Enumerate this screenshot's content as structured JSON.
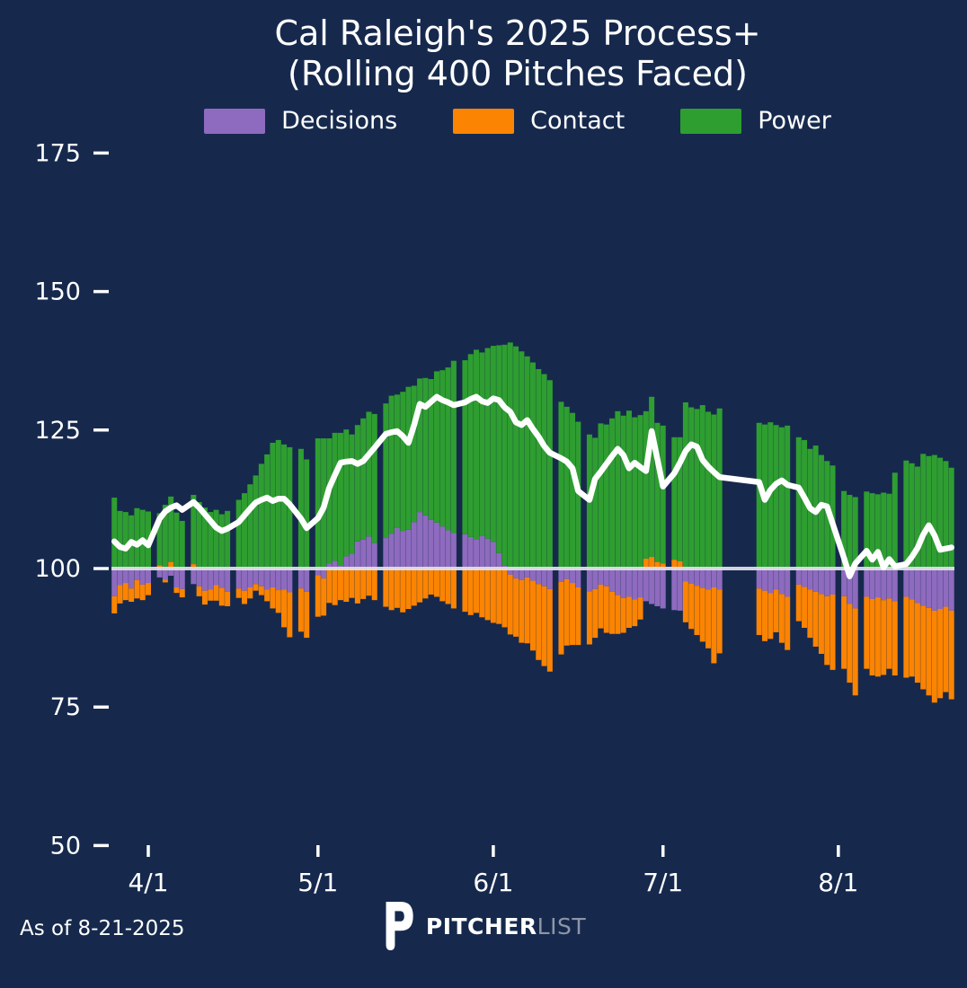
{
  "title": {
    "line1": "Cal Raleigh's 2025 Process+",
    "line2": "(Rolling 400 Pitches Faced)"
  },
  "legend": [
    {
      "label": "Decisions",
      "color": "#8e6bbf"
    },
    {
      "label": "Contact",
      "color": "#fb8402"
    },
    {
      "label": "Power",
      "color": "#2e9e30"
    }
  ],
  "footer": {
    "as_of": "As of 8-21-2025",
    "brand_bold": "PITCHER",
    "brand_light": "LIST"
  },
  "colors": {
    "background": "#16294d",
    "decisions": "#8e6bbf",
    "contact": "#fb8402",
    "power": "#2e9e30",
    "rolling_line": "#ffffff",
    "baseline": "#e2e2ec",
    "axis_text": "#ffffff",
    "brand_light_text": "#8e96a6"
  },
  "chart_data": {
    "type": "bar+line",
    "title": "Cal Raleigh's 2025 Process+ (Rolling 400 Pitches Faced)",
    "baseline": 100,
    "ylim": [
      45,
      182
    ],
    "yticks": [
      50,
      75,
      100,
      125,
      150,
      175
    ],
    "xticks": [
      "4/1",
      "5/1",
      "6/1",
      "7/1",
      "8/1"
    ],
    "grid": false,
    "legend_position": "top",
    "note": "Stacked deviation bars around baseline 100; white line = overall rolling Process+ (values estimated from pixels)",
    "x": [
      "3/26",
      "3/27",
      "3/28",
      "3/29",
      "3/30",
      "3/31",
      "4/1",
      "4/3",
      "4/4",
      "4/5",
      "4/6",
      "4/7",
      "4/9",
      "4/10",
      "4/11",
      "4/12",
      "4/13",
      "4/14",
      "4/15",
      "4/17",
      "4/18",
      "4/19",
      "4/20",
      "4/21",
      "4/22",
      "4/23",
      "4/24",
      "4/25",
      "4/26",
      "4/28",
      "4/29",
      "5/1",
      "5/2",
      "5/3",
      "5/4",
      "5/5",
      "5/6",
      "5/7",
      "5/8",
      "5/9",
      "5/10",
      "5/11",
      "5/13",
      "5/14",
      "5/15",
      "5/16",
      "5/17",
      "5/18",
      "5/19",
      "5/20",
      "5/21",
      "5/22",
      "5/23",
      "5/24",
      "5/25",
      "5/27",
      "5/28",
      "5/29",
      "5/30",
      "5/31",
      "6/1",
      "6/2",
      "6/3",
      "6/4",
      "6/5",
      "6/6",
      "6/7",
      "6/8",
      "6/9",
      "6/10",
      "6/11",
      "6/13",
      "6/14",
      "6/15",
      "6/16",
      "6/18",
      "6/19",
      "6/20",
      "6/21",
      "6/22",
      "6/23",
      "6/24",
      "6/25",
      "6/26",
      "6/27",
      "6/28",
      "6/29",
      "6/30",
      "7/1",
      "7/3",
      "7/4",
      "7/5",
      "7/6",
      "7/7",
      "7/8",
      "7/9",
      "7/10",
      "7/11",
      "7/18",
      "7/19",
      "7/20",
      "7/21",
      "7/22",
      "7/23",
      "7/25",
      "7/26",
      "7/27",
      "7/28",
      "7/29",
      "7/30",
      "7/31",
      "8/2",
      "8/3",
      "8/4",
      "8/6",
      "8/7",
      "8/8",
      "8/9",
      "8/10",
      "8/11",
      "8/13",
      "8/14",
      "8/15",
      "8/16",
      "8/17",
      "8/18",
      "8/19",
      "8/20",
      "8/21"
    ],
    "series": [
      {
        "name": "Decisions",
        "kind": "bar",
        "color": "#8e6bbf",
        "values": [
          95.0,
          97.0,
          97.4,
          96.4,
          97.9,
          97.1,
          97.4,
          98.4,
          98.0,
          98.7,
          96.6,
          96.3,
          97.2,
          96.8,
          96.0,
          96.2,
          97.0,
          96.5,
          95.8,
          96.4,
          96.0,
          96.6,
          97.2,
          96.8,
          96.2,
          96.6,
          96.1,
          96.2,
          95.7,
          96.4,
          95.8,
          98.8,
          98.2,
          100.9,
          101.4,
          100.6,
          102.2,
          102.7,
          104.9,
          105.2,
          105.8,
          104.6,
          105.5,
          106.3,
          107.3,
          106.8,
          107.0,
          108.4,
          110.2,
          109.6,
          108.8,
          108.3,
          107.6,
          106.9,
          106.4,
          106.2,
          105.7,
          105.3,
          105.9,
          105.4,
          104.8,
          102.8,
          100.5,
          98.9,
          98.2,
          97.9,
          98.4,
          97.8,
          97.2,
          96.8,
          96.3,
          97.6,
          98.1,
          97.4,
          96.6,
          95.9,
          96.3,
          97.1,
          96.8,
          95.8,
          95.2,
          94.7,
          94.9,
          94.4,
          94.8,
          94.1,
          93.6,
          93.2,
          92.8,
          92.5,
          92.4,
          97.7,
          97.3,
          96.9,
          96.5,
          96.2,
          96.6,
          96.2,
          96.4,
          96.0,
          95.6,
          96.2,
          95.4,
          94.9,
          97.1,
          96.7,
          96.2,
          95.8,
          95.4,
          95.0,
          95.3,
          95.0,
          93.6,
          92.8,
          94.9,
          94.5,
          94.8,
          94.3,
          94.6,
          94.1,
          94.9,
          94.4,
          93.8,
          93.3,
          92.9,
          92.4,
          92.7,
          93.1,
          92.4
        ]
      },
      {
        "name": "Contact",
        "kind": "bar",
        "color": "#fb8402",
        "values": [
          96.9,
          96.7,
          96.9,
          97.6,
          96.7,
          97.2,
          97.8,
          100.6,
          99.5,
          101.2,
          99.0,
          98.5,
          100.8,
          98.2,
          97.5,
          98.0,
          97.2,
          96.8,
          97.4,
          98.3,
          97.6,
          98.0,
          98.8,
          98.4,
          97.9,
          96.2,
          95.9,
          93.2,
          91.9,
          92.2,
          91.7,
          92.5,
          93.3,
          93.8,
          93.4,
          94.3,
          94.0,
          94.7,
          93.7,
          94.5,
          95.1,
          94.3,
          93.1,
          92.5,
          92.9,
          92.1,
          92.7,
          93.3,
          93.9,
          94.6,
          95.3,
          94.9,
          94.1,
          93.6,
          92.8,
          92.2,
          91.6,
          92.0,
          91.2,
          90.7,
          90.2,
          90.0,
          89.4,
          89.2,
          89.5,
          88.7,
          88.1,
          87.4,
          86.3,
          85.6,
          85.1,
          86.9,
          88.0,
          88.8,
          89.6,
          90.4,
          91.2,
          92.1,
          91.6,
          92.4,
          93.0,
          93.7,
          94.4,
          95.2,
          96.0,
          101.8,
          102.1,
          101.2,
          100.9,
          101.6,
          101.3,
          92.6,
          91.8,
          91.1,
          90.3,
          89.4,
          86.3,
          88.5,
          91.6,
          90.9,
          91.7,
          92.3,
          91.2,
          90.4,
          93.4,
          92.6,
          91.3,
          90.1,
          89.2,
          87.6,
          86.4,
          86.9,
          85.8,
          84.3,
          87.0,
          86.2,
          85.7,
          86.5,
          87.3,
          86.6,
          85.4,
          86.1,
          85.6,
          84.9,
          84.2,
          83.4,
          83.9,
          84.6,
          84.0
        ]
      },
      {
        "name": "Power",
        "kind": "bar",
        "color": "#2e9e30",
        "values": [
          112.8,
          110.4,
          110.2,
          109.6,
          110.9,
          110.6,
          110.3,
          109.4,
          111.5,
          111.8,
          110.1,
          108.6,
          112.5,
          112.0,
          111.0,
          110.2,
          110.6,
          109.8,
          110.4,
          112.4,
          113.6,
          115.2,
          116.8,
          118.9,
          120.6,
          122.7,
          123.2,
          122.4,
          121.9,
          121.6,
          119.7,
          123.5,
          123.5,
          122.6,
          123.1,
          123.9,
          122.9,
          121.5,
          121.0,
          121.9,
          122.5,
          123.3,
          124.3,
          124.9,
          124.1,
          125.1,
          125.8,
          124.6,
          124.1,
          124.8,
          125.4,
          127.3,
          128.2,
          129.4,
          131.1,
          131.4,
          133.0,
          134.2,
          133.1,
          134.4,
          135.4,
          137.5,
          139.9,
          140.8,
          140.1,
          139.2,
          138.3,
          137.2,
          136.0,
          135.1,
          134.0,
          130.1,
          129.2,
          128.1,
          126.5,
          124.2,
          123.6,
          126.2,
          126.0,
          127.1,
          128.4,
          127.6,
          128.5,
          127.3,
          127.7,
          126.6,
          128.9,
          125.1,
          124.9,
          122.1,
          122.4,
          130.0,
          129.1,
          128.8,
          129.5,
          128.3,
          127.8,
          128.9,
          126.3,
          126.0,
          126.4,
          125.9,
          125.5,
          125.8,
          123.7,
          123.2,
          121.6,
          122.2,
          120.5,
          119.4,
          118.6,
          114.0,
          113.3,
          112.9,
          113.9,
          113.6,
          113.4,
          113.7,
          113.5,
          117.3,
          119.5,
          119.0,
          118.4,
          120.7,
          120.3,
          120.5,
          120.0,
          119.4,
          118.2
        ]
      },
      {
        "name": "Rolling Process+",
        "kind": "line",
        "color": "#ffffff",
        "values": [
          104.9,
          103.9,
          103.6,
          104.8,
          104.3,
          105.1,
          104.2,
          109.0,
          110.3,
          111.0,
          111.4,
          110.6,
          112.0,
          111.0,
          109.8,
          108.6,
          107.4,
          106.8,
          107.2,
          108.4,
          109.6,
          110.8,
          111.9,
          112.4,
          112.8,
          112.2,
          112.6,
          112.6,
          111.6,
          109.0,
          107.3,
          109.1,
          111.0,
          114.6,
          116.9,
          119.1,
          119.3,
          119.4,
          118.9,
          119.4,
          120.6,
          121.8,
          124.3,
          124.6,
          124.8,
          123.9,
          122.7,
          125.9,
          129.7,
          129.2,
          130.1,
          131.0,
          130.4,
          130.0,
          129.5,
          130.0,
          130.6,
          131.0,
          130.2,
          129.9,
          130.7,
          130.4,
          129.1,
          128.3,
          126.4,
          125.9,
          126.8,
          125.2,
          123.8,
          122.1,
          120.9,
          119.9,
          119.3,
          118.1,
          114.0,
          112.4,
          116.2,
          117.5,
          118.9,
          120.3,
          121.6,
          120.5,
          118.1,
          119.1,
          118.3,
          117.6,
          124.8,
          119.8,
          114.8,
          117.2,
          119.1,
          121.2,
          122.4,
          122.0,
          119.6,
          118.4,
          117.4,
          116.5,
          115.6,
          112.4,
          114.2,
          115.3,
          115.9,
          115.1,
          114.6,
          112.8,
          110.9,
          110.2,
          111.5,
          111.2,
          108.1,
          101.9,
          98.6,
          100.9,
          103.2,
          101.6,
          103.0,
          100.2,
          101.7,
          100.4,
          100.8,
          102.1,
          103.7,
          106.1,
          107.8,
          106.0,
          103.4,
          103.6,
          103.8
        ]
      }
    ]
  }
}
